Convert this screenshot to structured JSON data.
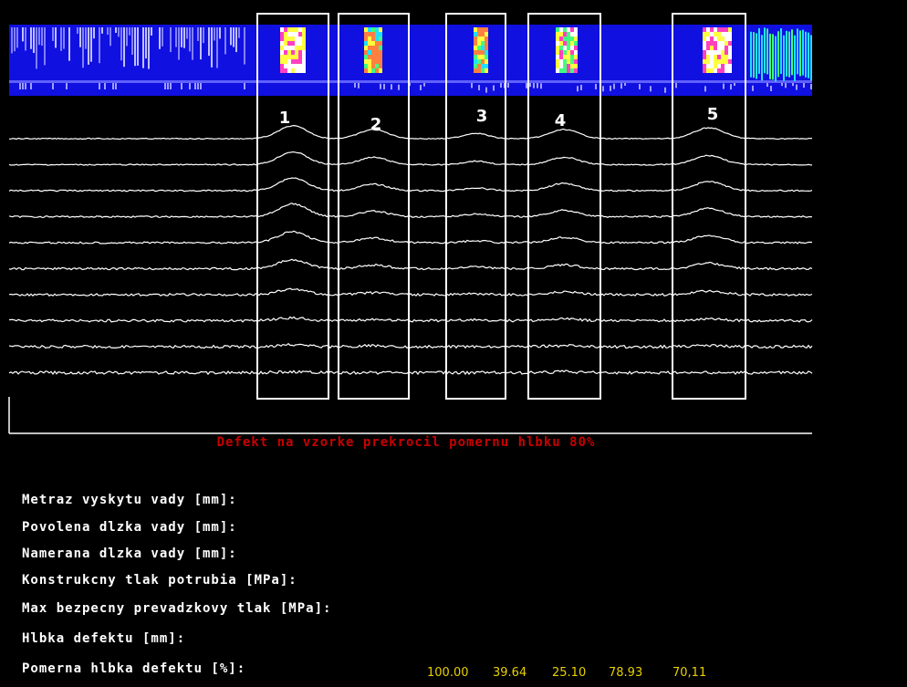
{
  "markers": [
    "1",
    "2",
    "3",
    "4",
    "5"
  ],
  "warning": "Defekt na vzorke prekrocil pomernu hlbku 80%",
  "fields": [
    "Metraz vyskytu vady [mm]:",
    "Povolena dlzka vady [mm]:",
    "Namerana dlzka vady [mm]:",
    "Konstrukcny tlak potrubia [MPa]:",
    "Max bezpecny prevadzkovy tlak [MPa]:",
    "Hlbka defektu [mm]:",
    "Pomerna hlbka defektu [%]:"
  ],
  "values": [
    "100.00",
    "39.64",
    "25.10",
    "78.93",
    "70,11"
  ]
}
